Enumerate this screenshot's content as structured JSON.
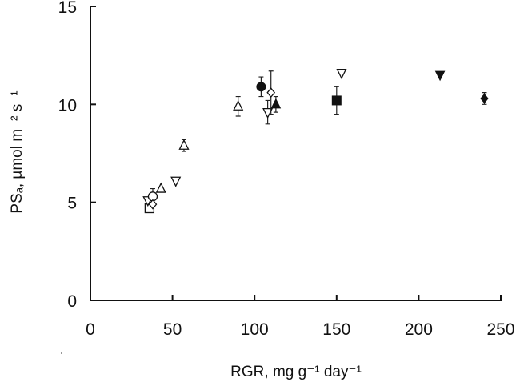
{
  "chart_data": {
    "type": "scatter",
    "title": "",
    "xlabel": "RGR,  mg  g⁻¹  day⁻¹",
    "ylabel": "PSₐ,  µmol  m⁻²  s⁻¹",
    "xlim": [
      0,
      250
    ],
    "ylim": [
      0,
      15
    ],
    "xticks": [
      0,
      50,
      100,
      150,
      200,
      250
    ],
    "yticks": [
      0,
      5,
      10,
      15
    ],
    "xtick_labels": [
      "0",
      "50",
      "100",
      "150",
      "200",
      "250"
    ],
    "ytick_labels": [
      "0",
      "5",
      "10",
      "15"
    ],
    "points": [
      {
        "x": 36,
        "y": 4.7,
        "marker": "square-open"
      },
      {
        "x": 35,
        "y": 5.1,
        "marker": "triangle-down-open"
      },
      {
        "x": 38,
        "y": 5.3,
        "marker": "circle-open",
        "err": 0.4
      },
      {
        "x": 38,
        "y": 4.9,
        "marker": "diamond-open"
      },
      {
        "x": 43,
        "y": 5.7,
        "marker": "triangle-up-open"
      },
      {
        "x": 52,
        "y": 6.1,
        "marker": "triangle-down-open"
      },
      {
        "x": 57,
        "y": 7.9,
        "marker": "triangle-up-open",
        "err": 0.3
      },
      {
        "x": 90,
        "y": 9.9,
        "marker": "triangle-up-open",
        "err": 0.5
      },
      {
        "x": 104,
        "y": 10.9,
        "marker": "circle-filled",
        "err": 0.5
      },
      {
        "x": 108,
        "y": 9.6,
        "marker": "triangle-down-open",
        "err": 0.6
      },
      {
        "x": 110,
        "y": 10.6,
        "marker": "diamond-open",
        "err": 1.1
      },
      {
        "x": 113,
        "y": 10.0,
        "marker": "triangle-up-filled",
        "err": 0.4
      },
      {
        "x": 150,
        "y": 10.2,
        "marker": "square-filled",
        "err": 0.7
      },
      {
        "x": 153,
        "y": 11.6,
        "marker": "triangle-down-open"
      },
      {
        "x": 213,
        "y": 11.5,
        "marker": "triangle-down-filled"
      },
      {
        "x": 240,
        "y": 10.3,
        "marker": "diamond-filled",
        "err": 0.3
      }
    ],
    "grid": false,
    "legend": "none"
  }
}
